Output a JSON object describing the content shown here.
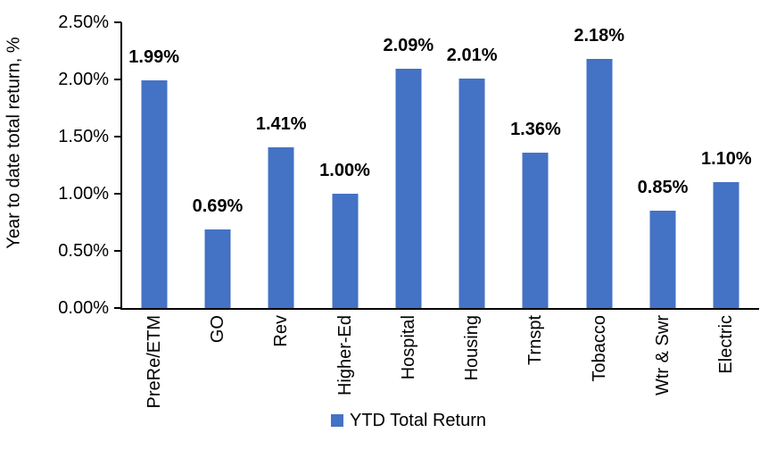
{
  "chart_data": {
    "type": "bar",
    "title": "",
    "categories": [
      "PreRe/ETM",
      "GO",
      "Rev",
      "Higher-Ed",
      "Hospital",
      "Housing",
      "Trnspt",
      "Tobacco",
      "Wtr & Swr",
      "Electric"
    ],
    "series": [
      {
        "name": "YTD Total Return",
        "values": [
          1.99,
          0.69,
          1.41,
          1.0,
          2.09,
          2.01,
          1.36,
          2.18,
          0.85,
          1.1
        ],
        "data_labels": [
          "1.99%",
          "0.69%",
          "1.41%",
          "1.00%",
          "2.09%",
          "2.01%",
          "1.36%",
          "2.18%",
          "0.85%",
          "1.10%"
        ],
        "color": "#4472C4"
      }
    ],
    "xlabel": "",
    "ylabel": "Year to date total return, %",
    "ylim": [
      0,
      2.5
    ],
    "y_ticks": [
      {
        "value": 0.0,
        "label": "0.00%"
      },
      {
        "value": 0.5,
        "label": "0.50%"
      },
      {
        "value": 1.0,
        "label": "1.00%"
      },
      {
        "value": 1.5,
        "label": "1.50%"
      },
      {
        "value": 2.0,
        "label": "2.00%"
      },
      {
        "value": 2.5,
        "label": "2.50%"
      }
    ],
    "grid": false,
    "legend_position": "bottom",
    "legend": [
      {
        "name": "YTD Total Return",
        "color": "#4472C4"
      }
    ],
    "colors": {
      "bar": "#4472C4",
      "axis": "#000000",
      "background": "#FFFFFF",
      "text": "#000000"
    }
  }
}
